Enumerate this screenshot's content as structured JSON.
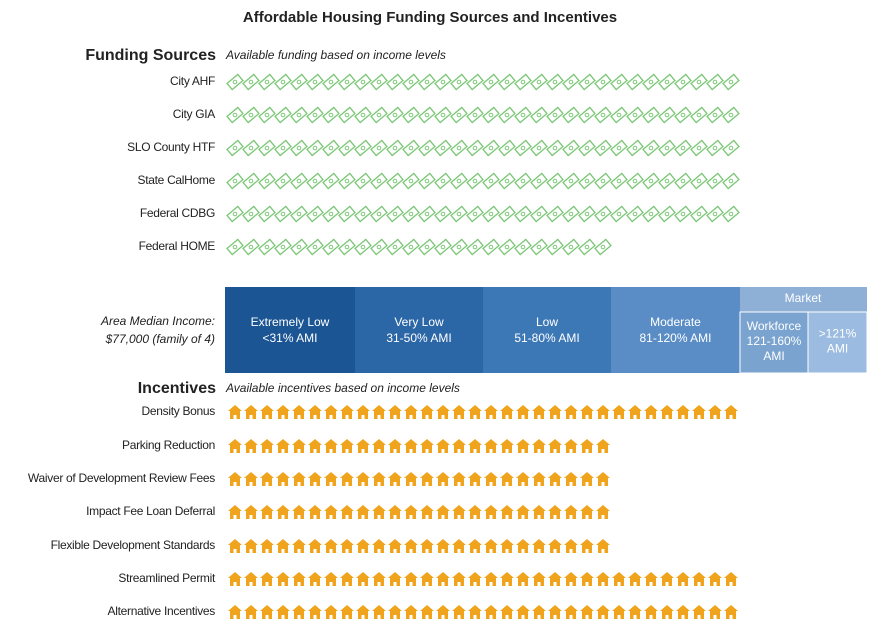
{
  "title": "Affordable Housing Funding Sources and Incentives",
  "funding": {
    "heading": "Funding Sources",
    "subtitle": "Available funding based on income levels",
    "rows": [
      "City AHF",
      "City GIA",
      "SLO County HTF",
      "State CalHome",
      "Federal CDBG",
      "Federal HOME"
    ]
  },
  "income": {
    "label": [
      "Area Median Income:",
      "$77,000 (family of 4)"
    ],
    "bands": [
      {
        "name": "Extremely Low",
        "range": "<31% AMI"
      },
      {
        "name": "Very Low",
        "range": "31-50% AMI"
      },
      {
        "name": "Low",
        "range": "51-80% AMI"
      },
      {
        "name": "Moderate",
        "range": "81-120% AMI"
      }
    ],
    "market": {
      "heading": "Market",
      "bands": [
        {
          "lines": [
            "Workforce",
            "121-160%",
            "AMI"
          ]
        },
        {
          "lines": [
            ">121%",
            "AMI"
          ]
        }
      ]
    }
  },
  "incentives": {
    "heading": "Incentives",
    "subtitle": "Available incentives based on income levels",
    "rows": [
      "Density Bonus",
      "Parking Reduction",
      "Waiver of Development Review Fees",
      "Impact Fee Loan Deferral",
      "Flexible Development Standards",
      "Streamlined Permit",
      "Alternative Incentives"
    ]
  }
}
